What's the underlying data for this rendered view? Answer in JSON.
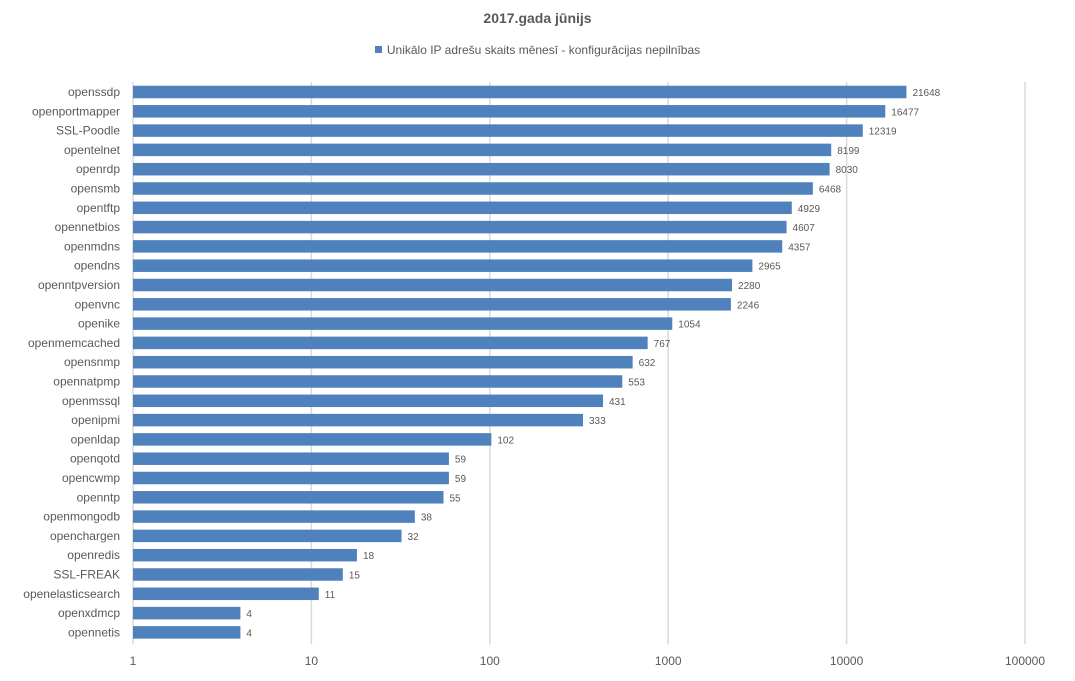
{
  "chart_data": {
    "type": "bar",
    "orientation": "horizontal",
    "title": "2017.gada jūnijs",
    "xlabel": "",
    "ylabel": "",
    "x_scale": "log",
    "xlim": [
      1,
      100000
    ],
    "x_ticks": [
      "1",
      "10",
      "100",
      "1000",
      "10000",
      "100000"
    ],
    "grid": "vertical",
    "legend_position": "top",
    "bar_color": "#4f81bd",
    "categories": [
      "openssdp",
      "openportmapper",
      "SSL-Poodle",
      "opentelnet",
      "openrdp",
      "opensmb",
      "opentftp",
      "opennetbios",
      "openmdns",
      "opendns",
      "openntpversion",
      "openvnc",
      "openike",
      "openmemcached",
      "opensnmp",
      "opennatpmp",
      "openmssql",
      "openipmi",
      "openldap",
      "openqotd",
      "opencwmp",
      "openntp",
      "openmongodb",
      "openchargen",
      "openredis",
      "SSL-FREAK",
      "openelasticsearch",
      "openxdmcp",
      "opennetis"
    ],
    "series": [
      {
        "name": "Unikālo IP adrešu skaits mēnesī  -  konfigurācijas nepilnības",
        "values": [
          21648,
          16477,
          12319,
          8199,
          8030,
          6468,
          4929,
          4607,
          4357,
          2965,
          2280,
          2246,
          1054,
          767,
          632,
          553,
          431,
          333,
          102,
          59,
          59,
          55,
          38,
          32,
          18,
          15,
          11,
          4,
          4
        ]
      }
    ]
  }
}
